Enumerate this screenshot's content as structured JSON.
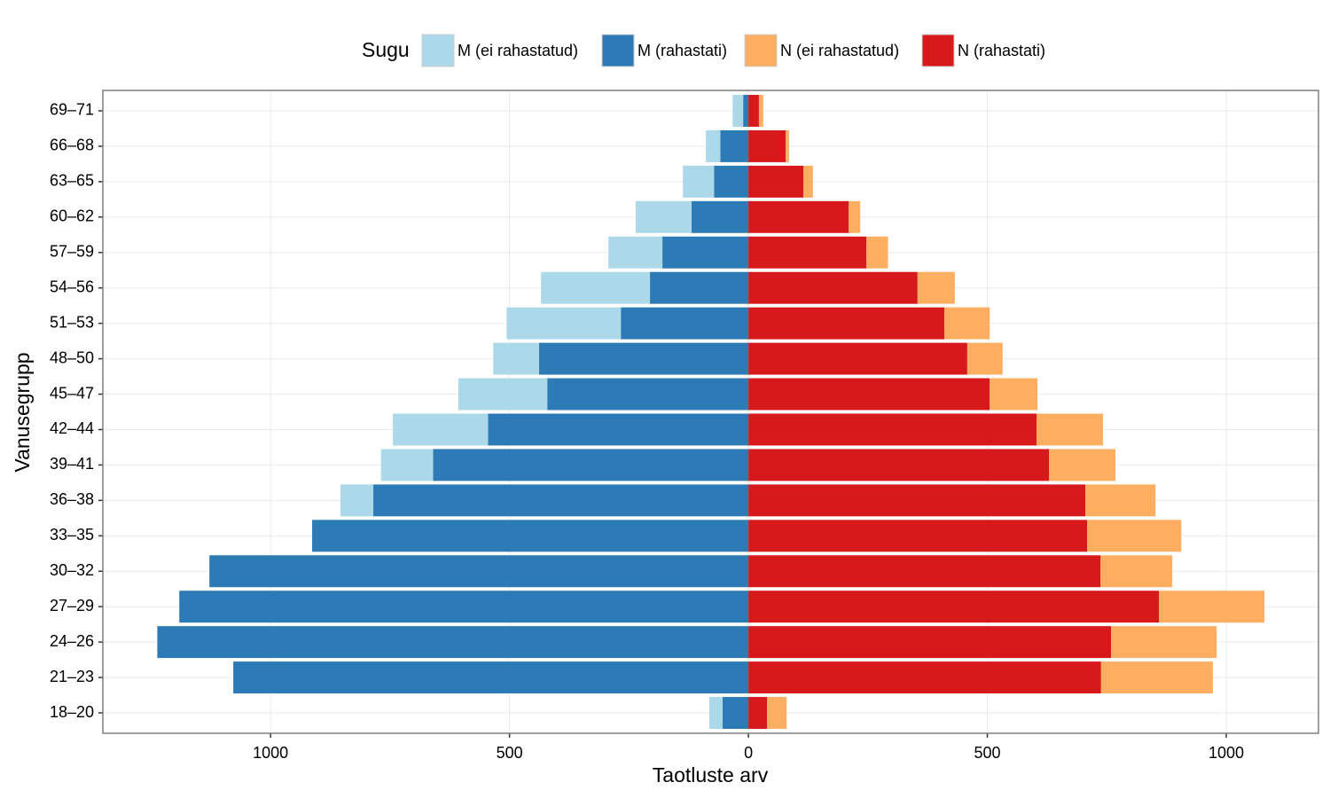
{
  "chart_data": {
    "type": "bar",
    "orientation": "horizontal",
    "stacked": true,
    "xlabel": "Taotluste arv",
    "ylabel": "Vanusegrupp",
    "legend_title": "Sugu",
    "legend_position": "top",
    "grid": true,
    "categories": [
      "18–20",
      "21–23",
      "24–26",
      "27–29",
      "30–32",
      "33–35",
      "36–38",
      "39–41",
      "42–44",
      "45–47",
      "48–50",
      "51–53",
      "54–56",
      "57–59",
      "60–62",
      "63–65",
      "66–68",
      "69–71"
    ],
    "series": [
      {
        "name": "M (ei rahastatud)",
        "color": "#abd9e9",
        "values": [
          -28,
          0,
          0,
          0,
          0,
          0,
          -69,
          -109,
          -199,
          -186,
          -96,
          -239,
          -228,
          -113,
          -117,
          -65,
          -30,
          -22
        ]
      },
      {
        "name": "M (rahastati)",
        "color": "#2c7bb6",
        "values": [
          -54,
          -1078,
          -1237,
          -1191,
          -1128,
          -913,
          -785,
          -660,
          -545,
          -421,
          -438,
          -267,
          -206,
          -180,
          -119,
          -72,
          -59,
          -11
        ]
      },
      {
        "name": "N (ei rahastatud)",
        "color": "#fdae61",
        "values": [
          41,
          234,
          221,
          221,
          150,
          197,
          147,
          139,
          139,
          100,
          74,
          95,
          78,
          45,
          24,
          20,
          7,
          9
        ]
      },
      {
        "name": "N (rahastati)",
        "color": "#d7191c",
        "values": [
          39,
          738,
          759,
          859,
          737,
          709,
          705,
          629,
          603,
          505,
          458,
          410,
          354,
          247,
          210,
          115,
          78,
          22
        ]
      }
    ],
    "xlim": [
      -1351,
      1193
    ],
    "xticks": [
      {
        "value": -1000,
        "label": "1000"
      },
      {
        "value": -500,
        "label": "500"
      },
      0,
      500,
      1000
    ]
  }
}
